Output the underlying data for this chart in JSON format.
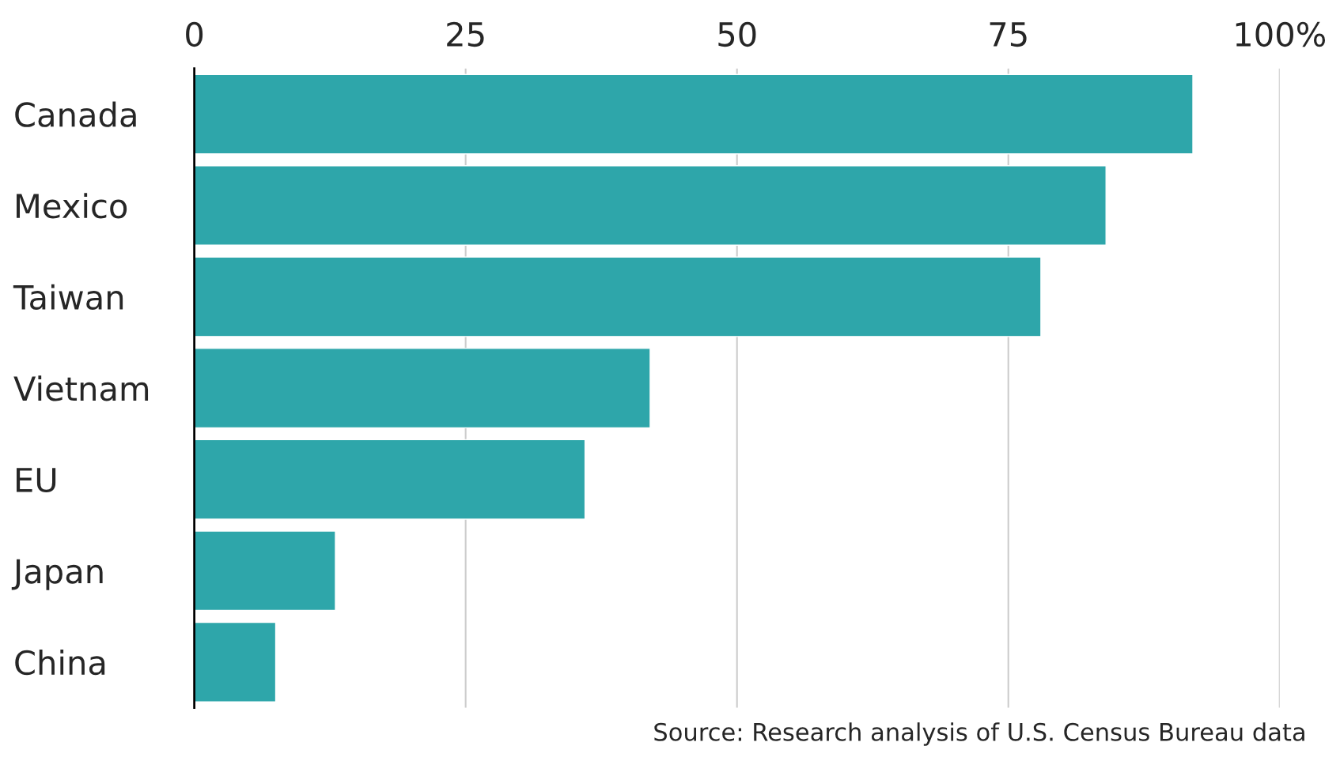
{
  "chart_data": {
    "type": "bar",
    "orientation": "horizontal",
    "categories": [
      "Canada",
      "Mexico",
      "Taiwan",
      "Vietnam",
      "EU",
      "Japan",
      "China"
    ],
    "values": [
      92,
      84,
      78,
      42,
      36,
      13,
      7.5
    ],
    "color": "#2ea6aa",
    "xlim": [
      0,
      100
    ],
    "xticks": [
      0,
      25,
      50,
      75,
      {
        "value": 100,
        "label": "100%"
      }
    ],
    "grid": "x",
    "annotations": [
      "Source: Research analysis of U.S. Census Bureau data"
    ]
  }
}
